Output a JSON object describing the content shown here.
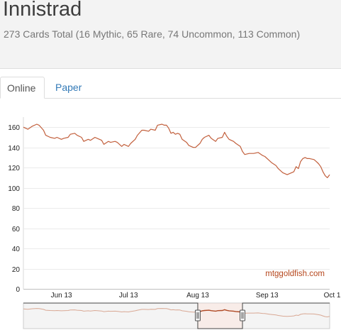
{
  "header": {
    "title": "Innistrad",
    "subtitle": "273 Cards Total (16 Mythic, 65 Rare, 74 Uncommon, 113 Common)"
  },
  "tabs": [
    {
      "label": "Online",
      "active": true
    },
    {
      "label": "Paper",
      "active": false
    }
  ],
  "chart_data": {
    "type": "line",
    "title": "",
    "xlabel": "",
    "ylabel": "",
    "x_tick_labels": [
      "Jun 13",
      "Jul 13",
      "Aug 13",
      "Sep 13",
      "Oct 13"
    ],
    "y_tick_labels": [
      "0",
      "20",
      "40",
      "60",
      "80",
      "100",
      "120",
      "140",
      "160"
    ],
    "ylim": [
      0,
      170
    ],
    "x_range_days": [
      0,
      137
    ],
    "x_tick_days": [
      17,
      47,
      78,
      109,
      139
    ],
    "grid": true,
    "line_color": "#c2603d",
    "watermark": "mtggoldfish.com",
    "series": [
      {
        "points": [
          [
            0,
            160
          ],
          [
            2,
            158
          ],
          [
            4,
            161
          ],
          [
            6,
            163
          ],
          [
            7,
            162
          ],
          [
            9,
            157
          ],
          [
            10,
            152
          ],
          [
            12,
            150
          ],
          [
            14,
            149
          ],
          [
            15,
            150
          ],
          [
            17,
            148
          ],
          [
            18,
            149
          ],
          [
            20,
            150
          ],
          [
            21,
            153
          ],
          [
            23,
            154
          ],
          [
            24,
            152
          ],
          [
            26,
            150
          ],
          [
            27,
            146
          ],
          [
            29,
            148
          ],
          [
            30,
            147
          ],
          [
            32,
            150
          ],
          [
            33,
            149
          ],
          [
            35,
            147
          ],
          [
            36,
            143
          ],
          [
            38,
            146
          ],
          [
            39,
            145
          ],
          [
            41,
            146
          ],
          [
            42,
            145
          ],
          [
            44,
            141
          ],
          [
            45,
            143
          ],
          [
            47,
            141
          ],
          [
            48,
            144
          ],
          [
            50,
            148
          ],
          [
            51,
            152
          ],
          [
            53,
            157
          ],
          [
            54,
            157
          ],
          [
            56,
            156
          ],
          [
            57,
            158
          ],
          [
            59,
            157
          ],
          [
            60,
            162
          ],
          [
            62,
            163
          ],
          [
            63,
            162
          ],
          [
            64,
            162
          ],
          [
            65,
            159
          ],
          [
            66,
            154
          ],
          [
            67,
            155
          ],
          [
            68,
            153
          ],
          [
            69,
            154
          ],
          [
            70,
            153
          ],
          [
            71,
            148
          ],
          [
            73,
            145
          ],
          [
            74,
            142
          ],
          [
            76,
            140
          ],
          [
            77,
            140
          ],
          [
            79,
            144
          ],
          [
            80,
            148
          ],
          [
            81,
            150
          ],
          [
            83,
            152
          ],
          [
            84,
            149
          ],
          [
            86,
            146
          ],
          [
            87,
            149
          ],
          [
            89,
            150
          ],
          [
            90,
            155
          ],
          [
            91,
            151
          ],
          [
            92,
            148
          ],
          [
            94,
            146
          ],
          [
            95,
            144
          ],
          [
            97,
            141
          ],
          [
            98,
            136
          ],
          [
            99,
            133
          ],
          [
            101,
            134
          ],
          [
            103,
            134
          ],
          [
            105,
            135
          ],
          [
            107,
            132
          ],
          [
            108,
            131
          ],
          [
            110,
            127
          ],
          [
            111,
            125
          ],
          [
            113,
            122
          ],
          [
            114,
            119
          ],
          [
            116,
            115
          ],
          [
            117,
            114
          ],
          [
            118,
            113
          ],
          [
            120,
            115
          ],
          [
            121,
            116
          ],
          [
            122,
            121
          ],
          [
            123,
            119
          ],
          [
            124,
            126
          ],
          [
            125,
            129
          ],
          [
            126,
            130
          ],
          [
            127,
            129
          ],
          [
            128,
            129
          ],
          [
            130,
            128
          ],
          [
            131,
            126
          ],
          [
            132,
            124
          ],
          [
            133,
            121
          ],
          [
            134,
            116
          ],
          [
            135,
            112
          ],
          [
            136,
            110
          ],
          [
            137,
            113
          ]
        ]
      }
    ],
    "navigator": {
      "selected_start_day": 78,
      "selected_end_day": 98,
      "line_color": "#d9a894"
    }
  }
}
